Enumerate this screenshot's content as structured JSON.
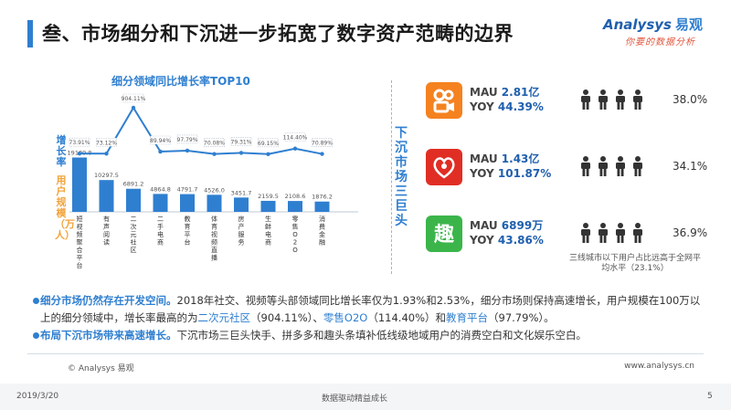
{
  "slide": {
    "title": "叁、市场细分和下沉进一步拓宽了数字资产范畴的边界",
    "logo_brand": "Analysys",
    "logo_cn": "易观",
    "logo_slogan": "你要的数据分析"
  },
  "chart_data": {
    "type": "bar",
    "title": "细分领域同比增长率TOP10",
    "ylabel_growth": "增长率",
    "ylabel_users": "用户规模（万人）",
    "categories": [
      "短视频聚合平台",
      "有声阅读",
      "二次元社区",
      "二手电商",
      "教育平台",
      "体育视频直播",
      "房产服务",
      "生鲜电商",
      "零售O2O",
      "消费金融"
    ],
    "series": [
      {
        "name": "用户规模",
        "values": [
          19109.8,
          10297.5,
          6891.2,
          4864.8,
          4791.7,
          4526.0,
          3451.7,
          2159.5,
          2108.6,
          1876.2
        ],
        "labels": [
          "19109.8",
          "10297.5",
          "6891.2",
          "4864.8",
          "4791.7",
          "4526.0",
          "3451.7",
          "2159.5",
          "2108.6",
          "1876.2"
        ]
      },
      {
        "name": "增长率",
        "values": [
          73.91,
          73.12,
          904.11,
          89.94,
          97.79,
          70.08,
          79.31,
          69.15,
          114.4,
          70.89
        ],
        "labels": [
          "73.91%",
          "73.12%",
          "904.11%",
          "89.94%",
          "97.79%",
          "70.08%",
          "79.31%",
          "69.15%",
          "114.40%",
          "70.89%"
        ]
      }
    ],
    "colors": {
      "bar": "#2f7fd0",
      "line": "#2f7fd0"
    }
  },
  "sink": {
    "title": "下沉市场三巨头",
    "apps": [
      {
        "icon": "kuaishou-icon",
        "color": "#f5821f",
        "mau_label": "MAU",
        "mau_value": "2.81亿",
        "yoy_label": "YOY",
        "yoy_value": "44.39%",
        "share": "38.0%",
        "share_fraction": 0.38
      },
      {
        "icon": "pinduoduo-icon",
        "color": "#e02e24",
        "mau_label": "MAU",
        "mau_value": "1.43亿",
        "yoy_label": "YOY",
        "yoy_value": "101.87%",
        "share": "34.1%",
        "share_fraction": 0.341
      },
      {
        "icon": "qutoutiao-icon",
        "color": "#3bb54a",
        "mau_label": "MAU",
        "mau_value": "6899万",
        "yoy_label": "YOY",
        "yoy_value": "43.86%",
        "share": "36.9%",
        "share_fraction": 0.369
      }
    ],
    "note": "三线城市以下用户占比远高于全网平均水平（23.1%）"
  },
  "bullets": {
    "b1_head": "细分市场仍然存在开发空间。",
    "b1_a": "2018年社交、视频等头部领域同比增长率仅为1.93%和2.53%，细分市场则保持高速增长，用户规模在100万以上的细分领域中，增长率最高的为",
    "b1_h1": "二次元社区",
    "b1_b": "（904.11%）、",
    "b1_h2": "零售O2O",
    "b1_c": "（114.40%）和",
    "b1_h3": "教育平台",
    "b1_d": "（97.79%）。",
    "b2_head": "布局下沉市场带来高速增长。",
    "b2_a": "下沉市场三巨头快手、拼多多和趣头条填补低线级地域用户的消费空白和文化娱乐空白。"
  },
  "footer": {
    "copyright": "© Analysys 易观",
    "site": "www.analysys.cn",
    "date": "2019/3/20",
    "slogan": "数据驱动精益成长",
    "page": "5"
  }
}
